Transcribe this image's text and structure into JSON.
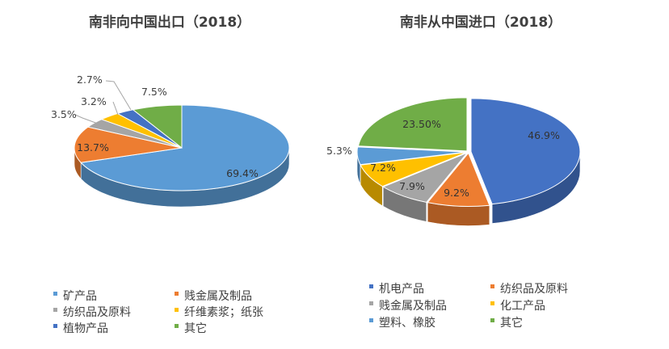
{
  "chart_data": [
    {
      "type": "pie",
      "title": "南非向中国出口（2018）",
      "slices": [
        {
          "label": "矿产品",
          "value": 69.4,
          "display": "69.4%",
          "color": "#5b9bd5"
        },
        {
          "label": "贱金属及制品",
          "value": 13.7,
          "display": "13.7%",
          "color": "#ed7d31"
        },
        {
          "label": "纺织品及原料",
          "value": 3.5,
          "display": "3.5%",
          "color": "#a5a5a5"
        },
        {
          "label": "纤维素浆；纸张",
          "value": 3.2,
          "display": "3.2%",
          "color": "#ffc000"
        },
        {
          "label": "植物产品",
          "value": 2.7,
          "display": "2.7%",
          "color": "#4472c4"
        },
        {
          "label": "其它",
          "value": 7.5,
          "display": "7.5%",
          "color": "#70ad47"
        }
      ],
      "legend": "bottom"
    },
    {
      "type": "pie",
      "title": "南非从中国进口（2018）",
      "slices": [
        {
          "label": "机电产品",
          "value": 46.9,
          "display": "46.9%",
          "color": "#4472c4"
        },
        {
          "label": "纺织品及原料",
          "value": 9.2,
          "display": "9.2%",
          "color": "#ed7d31"
        },
        {
          "label": "贱金属及制品",
          "value": 7.9,
          "display": "7.9%",
          "color": "#a5a5a5"
        },
        {
          "label": "化工产品",
          "value": 7.2,
          "display": "7.2%",
          "color": "#ffc000"
        },
        {
          "label": "塑料、橡胶",
          "value": 5.3,
          "display": "5.3%",
          "color": "#5b9bd5"
        },
        {
          "label": "其它",
          "value": 23.5,
          "display": "23.50%",
          "color": "#70ad47"
        }
      ],
      "legend": "bottom"
    }
  ]
}
